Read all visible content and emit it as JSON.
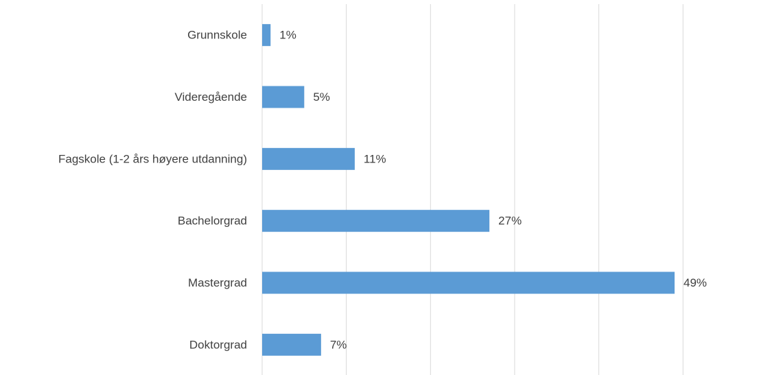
{
  "chart_data": {
    "type": "bar",
    "orientation": "horizontal",
    "categories": [
      "Grunnskole",
      "Videregående",
      "Fagskole (1-2 års høyere utdanning)",
      "Bachelorgrad",
      "Mastergrad",
      "Doktorgrad"
    ],
    "values": [
      1,
      5,
      11,
      27,
      49,
      7
    ],
    "value_labels": [
      "1%",
      "5%",
      "11%",
      "27%",
      "49%",
      "7%"
    ],
    "unit": "%",
    "xlim": [
      0,
      50
    ],
    "grid": true,
    "legend": "none",
    "colors": {
      "bar": "#5b9bd5",
      "grid": "#d9d9d9",
      "text": "#404040"
    }
  }
}
